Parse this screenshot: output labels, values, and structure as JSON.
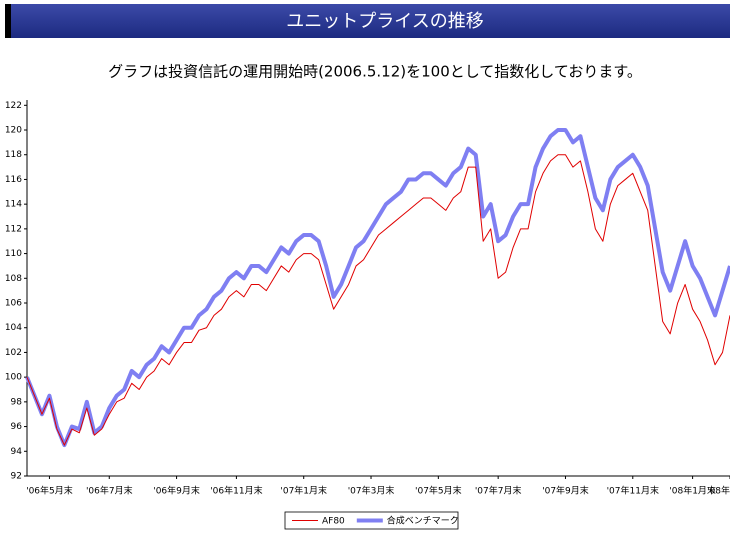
{
  "header": {
    "title": "ユニットプライスの推移",
    "subtitle": "グラフは投資信託の運用開始時(2006.5.12)を100として指数化しております。"
  },
  "chart_data": {
    "type": "line",
    "categories": [
      null,
      null,
      null,
      "'06年5月末",
      null,
      null,
      null,
      null,
      null,
      null,
      null,
      "'06年7月末",
      null,
      null,
      null,
      null,
      null,
      null,
      null,
      null,
      "'06年9月末",
      null,
      null,
      null,
      null,
      null,
      null,
      null,
      "'06年11月末",
      null,
      null,
      null,
      null,
      null,
      null,
      null,
      null,
      "'07年1月末",
      null,
      null,
      null,
      null,
      null,
      null,
      null,
      null,
      "'07年3月末",
      null,
      null,
      null,
      null,
      null,
      null,
      null,
      null,
      "'07年5月末",
      null,
      null,
      null,
      null,
      null,
      null,
      null,
      "'07年7月末",
      null,
      null,
      null,
      null,
      null,
      null,
      null,
      null,
      "'07年9月末",
      null,
      null,
      null,
      null,
      null,
      null,
      null,
      null,
      "'07年11月末",
      null,
      null,
      null,
      null,
      null,
      null,
      null,
      "'08年1月末",
      null,
      null,
      null,
      null,
      "'08年"
    ],
    "series": [
      {
        "name": "合成ベンチマーク",
        "color": "#7f7ff2",
        "values": [
          100,
          98.5,
          97,
          98.5,
          96,
          94.5,
          96,
          95.8,
          98,
          95.5,
          96,
          97.5,
          98.5,
          99,
          100.5,
          100,
          101,
          101.5,
          102.5,
          102,
          103,
          104,
          104,
          105,
          105.5,
          106.5,
          107,
          108,
          108.5,
          108,
          109,
          109,
          108.5,
          109.5,
          110.5,
          110,
          111,
          111.5,
          111.5,
          111,
          109,
          106.5,
          107.5,
          109,
          110.5,
          111,
          112,
          113,
          114,
          114.5,
          115,
          116,
          116,
          116.5,
          116.5,
          116,
          115.5,
          116.5,
          117,
          118.5,
          118,
          113,
          114,
          111,
          111.5,
          113,
          114,
          114,
          117,
          118.5,
          119.5,
          120,
          120,
          119,
          119.5,
          117,
          114.5,
          113.5,
          116,
          117,
          117.5,
          118,
          117,
          115.5,
          112,
          108.5,
          107,
          109,
          111,
          109,
          108,
          106.5,
          105,
          107,
          109
        ]
      },
      {
        "name": "AF80",
        "color": "#e00000",
        "values": [
          100,
          98.5,
          97,
          98.3,
          95.8,
          94.5,
          95.8,
          95.5,
          97.5,
          95.3,
          95.8,
          97,
          98,
          98.3,
          99.5,
          99,
          100,
          100.5,
          101.5,
          101,
          102,
          102.8,
          102.8,
          103.8,
          104,
          105,
          105.5,
          106.5,
          107,
          106.5,
          107.5,
          107.5,
          107,
          108,
          109,
          108.5,
          109.5,
          110,
          110,
          109.5,
          107.5,
          105.5,
          106.5,
          107.5,
          109,
          109.5,
          110.5,
          111.5,
          112,
          112.5,
          113,
          113.5,
          114,
          114.5,
          114.5,
          114,
          113.5,
          114.5,
          115,
          117,
          117,
          111,
          112,
          108,
          108.5,
          110.5,
          112,
          112,
          115,
          116.5,
          117.5,
          118,
          118,
          117,
          117.5,
          115,
          112,
          111,
          114,
          115.5,
          116,
          116.5,
          115,
          113.5,
          109,
          104.5,
          103.5,
          106,
          107.5,
          105.5,
          104.5,
          103,
          101,
          102,
          105
        ]
      }
    ],
    "ylim": [
      92,
      122
    ],
    "yticks": [
      92,
      94,
      96,
      98,
      100,
      102,
      104,
      106,
      108,
      110,
      112,
      114,
      116,
      118,
      120,
      122
    ],
    "grid": false
  }
}
